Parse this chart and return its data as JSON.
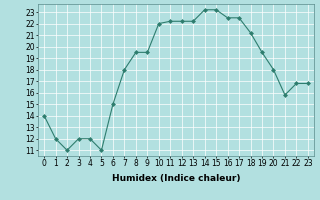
{
  "x": [
    0,
    1,
    2,
    3,
    4,
    5,
    6,
    7,
    8,
    9,
    10,
    11,
    12,
    13,
    14,
    15,
    16,
    17,
    18,
    19,
    20,
    21,
    22,
    23
  ],
  "y": [
    14,
    12,
    11,
    12,
    12,
    11,
    15,
    18,
    19.5,
    19.5,
    22,
    22.2,
    22.2,
    22.2,
    23.2,
    23.2,
    22.5,
    22.5,
    21.2,
    19.5,
    18,
    15.8,
    16.8,
    16.8
  ],
  "line_color": "#2e7d6e",
  "marker": "D",
  "marker_size": 2,
  "bg_color": "#b2e0e0",
  "grid_color": "#ffffff",
  "xlabel": "Humidex (Indice chaleur)",
  "xlim": [
    -0.5,
    23.5
  ],
  "ylim": [
    10.5,
    23.7
  ],
  "yticks": [
    11,
    12,
    13,
    14,
    15,
    16,
    17,
    18,
    19,
    20,
    21,
    22,
    23
  ],
  "xticks": [
    0,
    1,
    2,
    3,
    4,
    5,
    6,
    7,
    8,
    9,
    10,
    11,
    12,
    13,
    14,
    15,
    16,
    17,
    18,
    19,
    20,
    21,
    22,
    23
  ],
  "label_fontsize": 6.5,
  "tick_fontsize": 5.5
}
